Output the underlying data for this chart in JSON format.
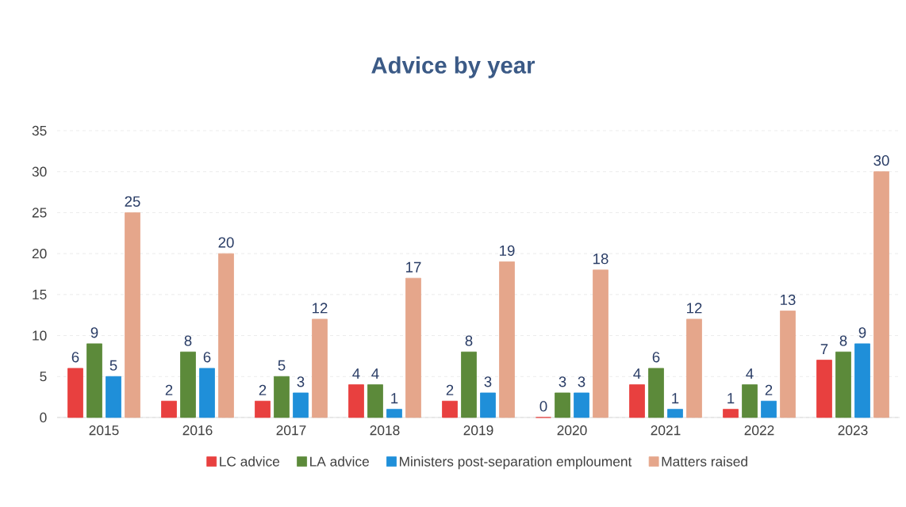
{
  "chart_data": {
    "type": "bar",
    "title": "Advice by year",
    "categories": [
      "2015",
      "2016",
      "2017",
      "2018",
      "2019",
      "2020",
      "2021",
      "2022",
      "2023"
    ],
    "series": [
      {
        "name": "LC advice",
        "color": "#e8403f",
        "values": [
          6,
          2,
          2,
          4,
          2,
          0,
          4,
          1,
          7
        ]
      },
      {
        "name": "LA advice",
        "color": "#5c8a3a",
        "values": [
          9,
          8,
          5,
          4,
          8,
          3,
          6,
          4,
          8
        ]
      },
      {
        "name": "Ministers post-separation emploument",
        "color": "#1f8fd9",
        "values": [
          5,
          6,
          3,
          1,
          3,
          3,
          1,
          2,
          9
        ]
      },
      {
        "name": "Matters raised",
        "color": "#e5a68b",
        "values": [
          25,
          20,
          12,
          17,
          19,
          18,
          12,
          13,
          30
        ]
      }
    ],
    "ylim": [
      0,
      35
    ],
    "yticks": [
      0,
      5,
      10,
      15,
      20,
      25,
      30,
      35
    ],
    "grid": "y",
    "legend": "bottom",
    "data_labels": true
  }
}
